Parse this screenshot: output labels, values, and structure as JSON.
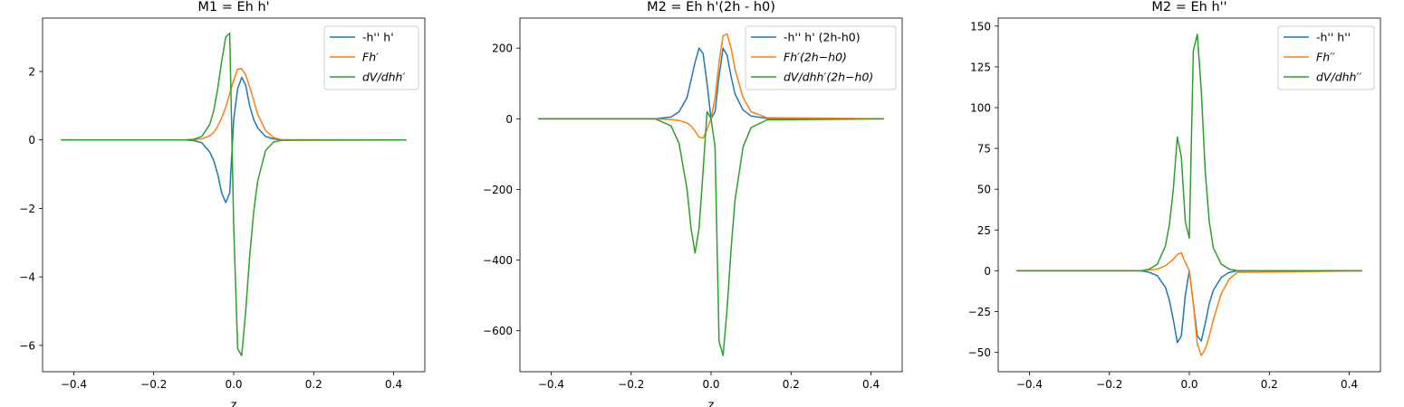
{
  "figure": {
    "background": "#ffffff",
    "series_colors": [
      "#1f77b4",
      "#ff7f0e",
      "#2ca02c"
    ]
  },
  "chart_data": [
    {
      "type": "line",
      "title": "M1 = Eh h'",
      "xlabel": "z",
      "ylabel": "",
      "xlim": [
        -0.478,
        0.478
      ],
      "ylim": [
        -6.77,
        3.56
      ],
      "xticks": [
        -0.4,
        -0.2,
        0.0,
        0.2,
        0.4
      ],
      "xtick_labels": [
        "−0.4",
        "−0.2",
        "0.0",
        "0.2",
        "0.4"
      ],
      "yticks": [
        -6,
        -4,
        -2,
        0,
        2
      ],
      "ytick_labels": [
        "−6",
        "−4",
        "−2",
        "0",
        "2"
      ],
      "legend_loc": "upper right",
      "x": [
        -0.432,
        -0.12,
        -0.1,
        -0.08,
        -0.06,
        -0.05,
        -0.04,
        -0.03,
        -0.02,
        -0.01,
        0.0,
        0.01,
        0.02,
        0.03,
        0.04,
        0.05,
        0.06,
        0.08,
        0.1,
        0.12,
        0.432
      ],
      "series": [
        {
          "name": "-h'' h'",
          "values": [
            0,
            0,
            -0.02,
            -0.08,
            -0.35,
            -0.6,
            -1.0,
            -1.55,
            -1.83,
            -1.55,
            0.6,
            1.5,
            1.83,
            1.6,
            1.0,
            0.6,
            0.35,
            0.1,
            0.03,
            0,
            0
          ]
        },
        {
          "name": "Fh′",
          "values": [
            0,
            0,
            0.01,
            0.03,
            0.12,
            0.22,
            0.4,
            0.65,
            0.95,
            1.35,
            1.75,
            2.07,
            2.08,
            1.9,
            1.55,
            1.15,
            0.75,
            0.27,
            0.07,
            0.01,
            0
          ]
        },
        {
          "name": "dV/dhh′",
          "values": [
            0,
            0,
            0.02,
            0.1,
            0.45,
            0.85,
            1.5,
            2.3,
            3.0,
            3.12,
            -2.5,
            -6.1,
            -6.3,
            -5.0,
            -3.4,
            -2.1,
            -1.2,
            -0.3,
            -0.06,
            -0.01,
            0
          ]
        }
      ]
    },
    {
      "type": "line",
      "title": "M2 = Eh h'(2h - h0)",
      "xlabel": "z",
      "ylabel": "",
      "xlim": [
        -0.478,
        0.478
      ],
      "ylim": [
        -716,
        285
      ],
      "xticks": [
        -0.4,
        -0.2,
        0.0,
        0.2,
        0.4
      ],
      "xtick_labels": [
        "−0.4",
        "−0.2",
        "0.0",
        "0.2",
        "0.4"
      ],
      "yticks": [
        -600,
        -400,
        -200,
        0,
        200
      ],
      "ytick_labels": [
        "−600",
        "−400",
        "−200",
        "0",
        "200"
      ],
      "legend_loc": "upper right",
      "x": [
        -0.432,
        -0.14,
        -0.1,
        -0.08,
        -0.06,
        -0.05,
        -0.04,
        -0.03,
        -0.02,
        -0.01,
        0.0,
        0.01,
        0.02,
        0.03,
        0.04,
        0.05,
        0.06,
        0.08,
        0.1,
        0.14,
        0.432
      ],
      "series": [
        {
          "name": "-h'' h' (2h-h0)",
          "values": [
            0,
            0,
            5,
            20,
            60,
            110,
            160,
            200,
            185,
            100,
            0,
            20,
            120,
            200,
            180,
            120,
            70,
            25,
            8,
            1,
            0
          ]
        },
        {
          "name": "Fh′(2h−h0)",
          "values": [
            0,
            0,
            -2,
            -5,
            -12,
            -20,
            -35,
            -52,
            -55,
            -30,
            0,
            60,
            160,
            235,
            240,
            200,
            140,
            60,
            20,
            3,
            0
          ]
        },
        {
          "name": "dV/dhh′(2h−h0)",
          "values": [
            0,
            0,
            -20,
            -70,
            -200,
            -310,
            -380,
            -310,
            -150,
            20,
            0,
            -80,
            -630,
            -670,
            -540,
            -370,
            -230,
            -80,
            -25,
            -3,
            0
          ]
        }
      ]
    },
    {
      "type": "line",
      "title": "M2 = Eh h''",
      "xlabel": "",
      "ylabel": "",
      "xlim": [
        -0.478,
        0.478
      ],
      "ylim": [
        -61.9,
        154.9
      ],
      "xticks": [
        -0.4,
        -0.2,
        0.0,
        0.2,
        0.4
      ],
      "xtick_labels": [
        "−0.4",
        "−0.2",
        "0.0",
        "0.2",
        "0.4"
      ],
      "yticks": [
        -50,
        -25,
        0,
        25,
        50,
        75,
        100,
        125,
        150
      ],
      "ytick_labels": [
        "−50",
        "−25",
        "0",
        "25",
        "50",
        "75",
        "100",
        "125",
        "150"
      ],
      "legend_loc": "upper right",
      "x": [
        -0.432,
        -0.12,
        -0.1,
        -0.08,
        -0.06,
        -0.05,
        -0.04,
        -0.03,
        -0.02,
        -0.01,
        0.0,
        0.01,
        0.02,
        0.03,
        0.04,
        0.05,
        0.06,
        0.08,
        0.1,
        0.12,
        0.432
      ],
      "series": [
        {
          "name": "-h'' h''",
          "values": [
            0,
            0,
            -1,
            -3,
            -10,
            -18,
            -30,
            -44,
            -40,
            -15,
            0,
            -20,
            -40,
            -43,
            -32,
            -20,
            -12,
            -4,
            -1,
            0,
            0
          ]
        },
        {
          "name": "Fh′′",
          "values": [
            0,
            0,
            0.5,
            1,
            3,
            5,
            7,
            10,
            11,
            5,
            0,
            -20,
            -45,
            -52,
            -48,
            -40,
            -30,
            -14,
            -5,
            -1,
            0
          ]
        },
        {
          "name": "dV/dhh′′",
          "values": [
            0,
            0,
            1,
            4,
            15,
            28,
            50,
            82,
            70,
            30,
            20,
            135,
            145,
            110,
            60,
            30,
            14,
            4,
            1,
            0,
            0
          ]
        }
      ]
    }
  ]
}
